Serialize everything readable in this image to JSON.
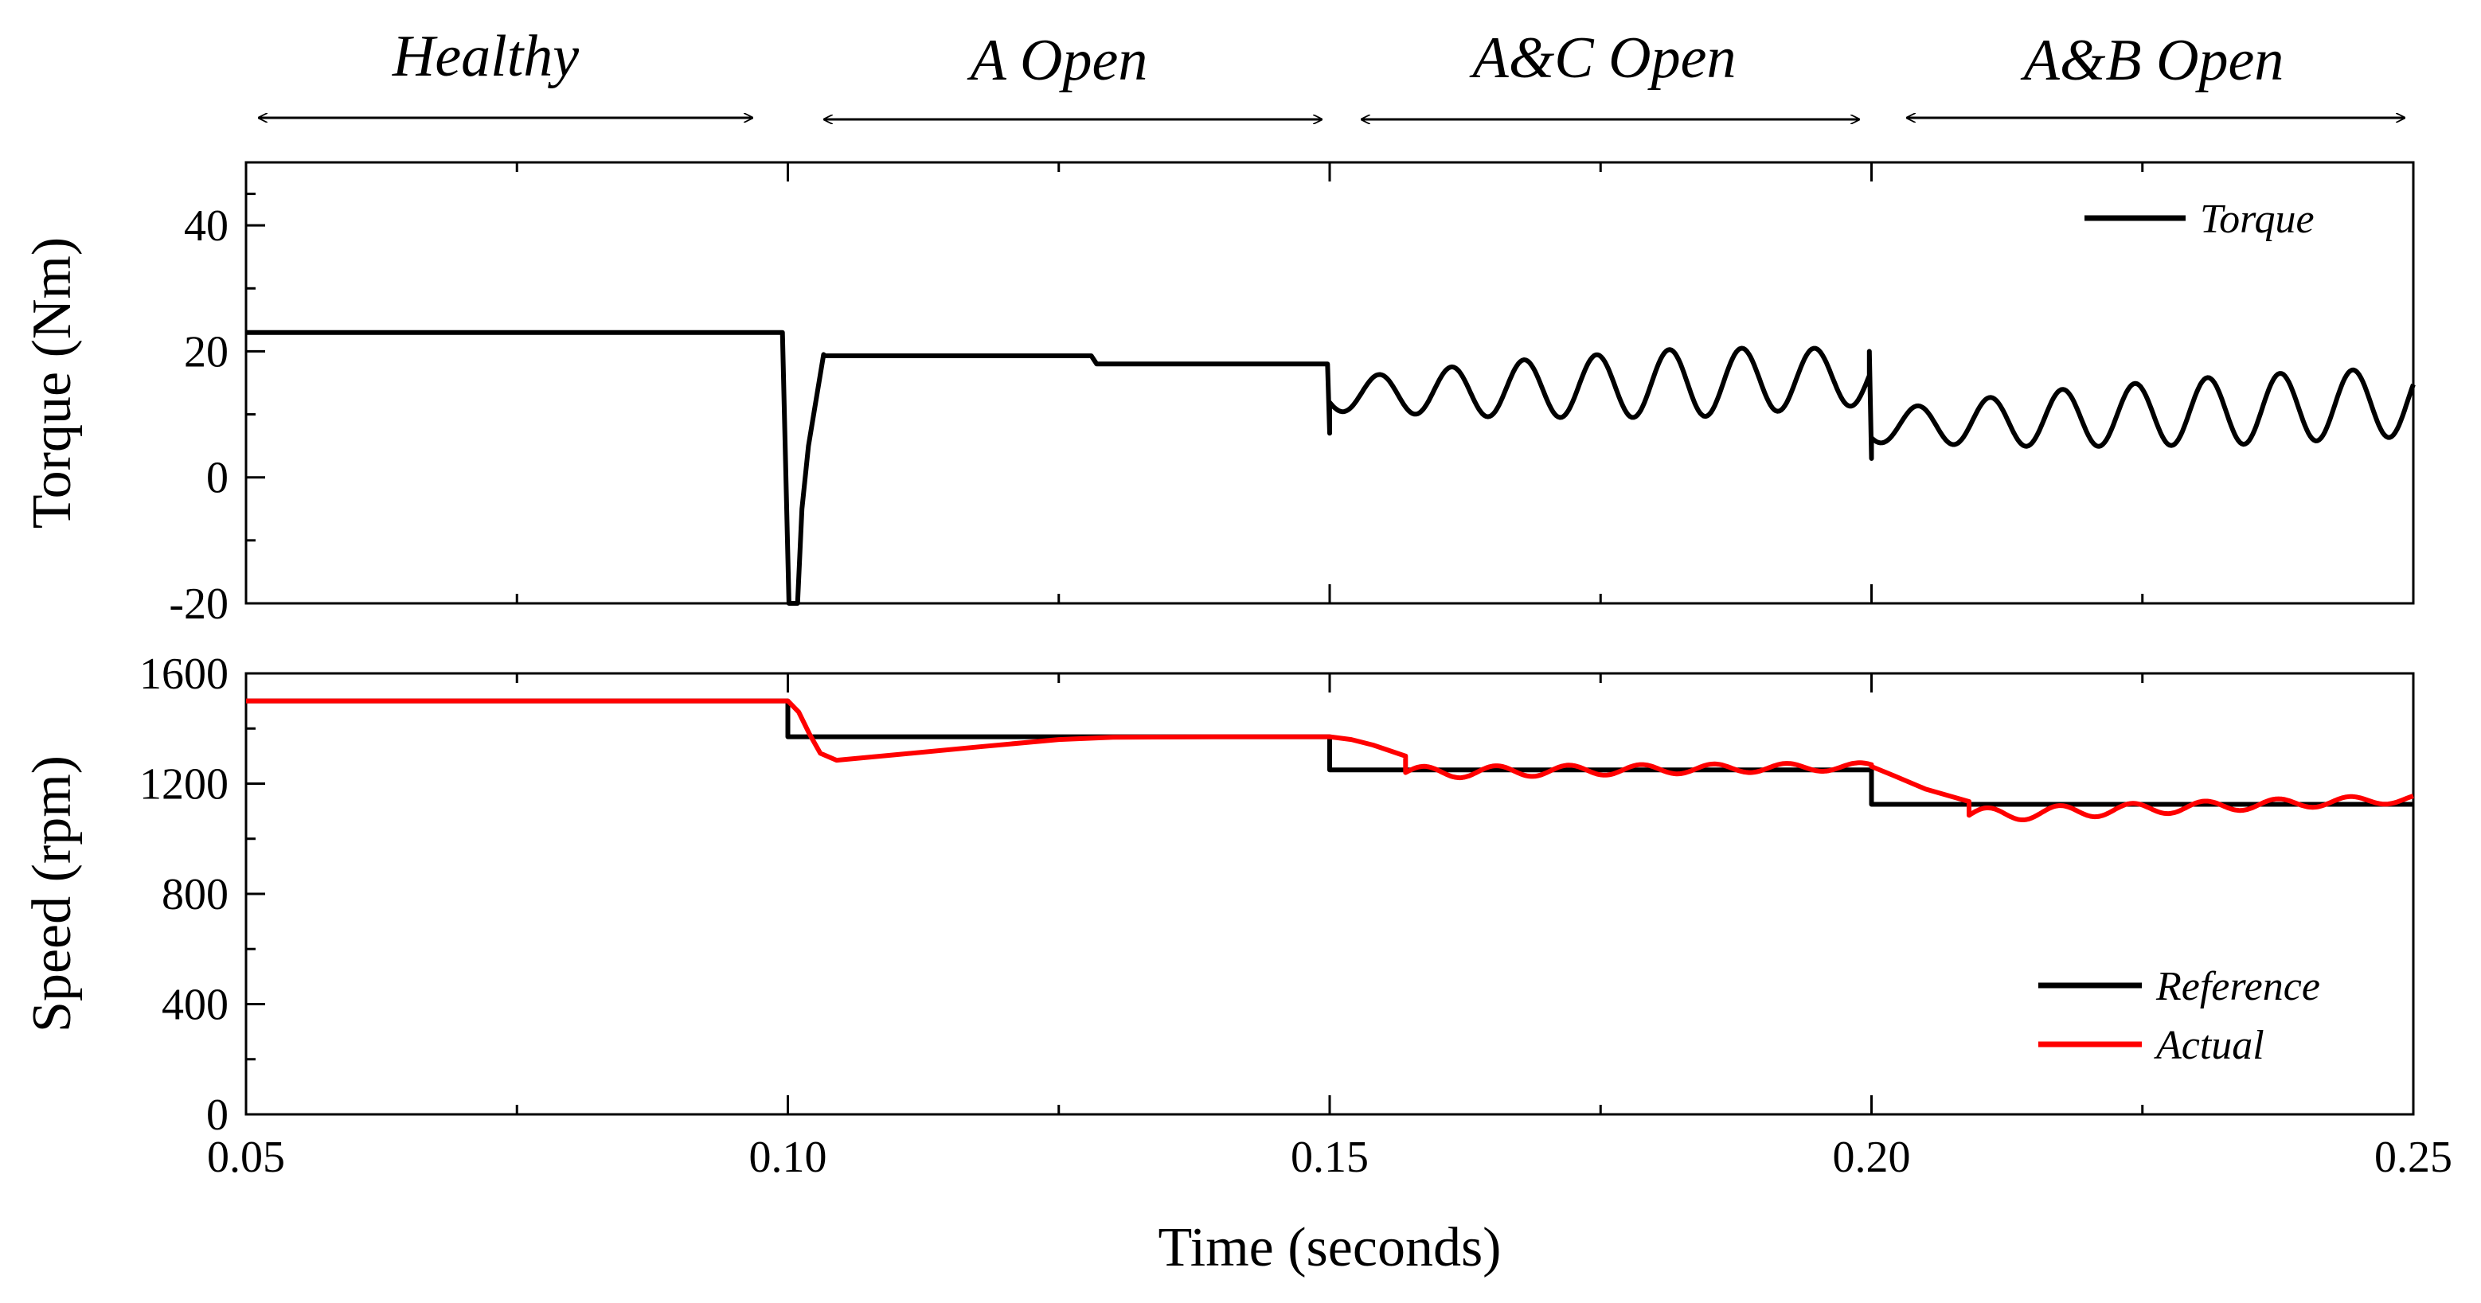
{
  "chart_data": [
    {
      "type": "line",
      "panel": "top",
      "ylabel": "Torque (Nm)",
      "xlim": [
        0.05,
        0.25
      ],
      "ylim": [
        -20,
        50
      ],
      "yticks": [
        -20,
        0,
        20,
        40
      ],
      "ytick_labels": [
        "-20",
        "0",
        "20",
        "40"
      ],
      "legend": {
        "position": "top-right",
        "entries": [
          "Torque"
        ]
      },
      "series": [
        {
          "name": "Torque",
          "color": "#000000",
          "segments": [
            {
              "kind": "const",
              "x0": 0.05,
              "x1": 0.0995,
              "y": 23
            },
            {
              "kind": "points",
              "x": [
                0.0995,
                0.1001,
                0.1009,
                0.1013,
                0.1019,
                0.1033
              ],
              "y": [
                23,
                -20,
                -20,
                -5,
                5,
                19.5
              ]
            },
            {
              "kind": "const",
              "x0": 0.1033,
              "x1": 0.128,
              "y": 19.3
            },
            {
              "kind": "points",
              "x": [
                0.128,
                0.1285
              ],
              "y": [
                19.3,
                18
              ]
            },
            {
              "kind": "const",
              "x0": 0.1285,
              "x1": 0.1498,
              "y": 18
            },
            {
              "kind": "points",
              "x": [
                0.1498,
                0.15
              ],
              "y": [
                18,
                7
              ]
            },
            {
              "kind": "osc",
              "x0": 0.15,
              "x1": 0.1998,
              "center": [
                13,
                16
              ],
              "amp": [
                2.5,
                4.5,
                5.5,
                4.5
              ],
              "period": 0.0067,
              "phase": 3.6
            },
            {
              "kind": "points",
              "x": [
                0.1998,
                0.2
              ],
              "y": [
                20,
                3
              ]
            },
            {
              "kind": "osc",
              "x0": 0.2,
              "x1": 0.25,
              "center": [
                8,
                12
              ],
              "amp": [
                2.5,
                4.5,
                5.5,
                5.5
              ],
              "period": 0.0067,
              "phase": 3.9
            }
          ]
        }
      ]
    },
    {
      "type": "line",
      "panel": "bottom",
      "xlabel": "Time (seconds)",
      "ylabel": "Speed (rpm)",
      "xlim": [
        0.05,
        0.25
      ],
      "ylim": [
        0,
        1600
      ],
      "xticks": [
        0.05,
        0.1,
        0.15,
        0.2,
        0.25
      ],
      "xtick_labels": [
        "0.05",
        "0.10",
        "0.15",
        "0.20",
        "0.25"
      ],
      "yticks": [
        0,
        400,
        800,
        1200,
        1600
      ],
      "ytick_labels": [
        "0",
        "400",
        "800",
        "1200",
        "1600"
      ],
      "legend": {
        "position": "bottom-right",
        "entries": [
          "Reference",
          "Actual"
        ]
      },
      "series": [
        {
          "name": "Reference",
          "color": "#000000",
          "x": [
            0.05,
            0.1,
            0.1,
            0.15,
            0.15,
            0.2,
            0.2,
            0.25
          ],
          "y": [
            1500,
            1500,
            1370,
            1370,
            1250,
            1250,
            1125,
            1125
          ]
        },
        {
          "name": "Actual",
          "color": "#ff0000",
          "segments": [
            {
              "kind": "points",
              "x": [
                0.05,
                0.1,
                0.101,
                0.102,
                0.103,
                0.1045
              ],
              "y": [
                1500,
                1500,
                1460,
                1380,
                1310,
                1285
              ]
            },
            {
              "kind": "points",
              "x": [
                0.1045,
                0.11,
                0.118,
                0.125,
                0.13,
                0.14,
                0.15,
                0.152,
                0.154,
                0.157
              ],
              "y": [
                1285,
                1305,
                1335,
                1360,
                1368,
                1370,
                1370,
                1360,
                1340,
                1300
              ]
            },
            {
              "kind": "osc",
              "x0": 0.157,
              "x1": 0.2,
              "center": [
                1240,
                1262
              ],
              "amp": [
                22,
                14
              ],
              "period": 0.0067,
              "phase": 0
            },
            {
              "kind": "points",
              "x": [
                0.2,
                0.202,
                0.205,
                0.209
              ],
              "y": [
                1262,
                1230,
                1180,
                1135
              ]
            },
            {
              "kind": "osc",
              "x0": 0.209,
              "x1": 0.25,
              "center": [
                1085,
                1145
              ],
              "amp": [
                25,
                15
              ],
              "period": 0.0067,
              "phase": 0
            }
          ]
        }
      ]
    }
  ],
  "phases": [
    {
      "label": "Healthy",
      "from": 0.05,
      "to": 0.1
    },
    {
      "label": "A Open",
      "from": 0.1,
      "to": 0.15
    },
    {
      "label": "A&C Open",
      "from": 0.15,
      "to": 0.2
    },
    {
      "label": "A&B Open",
      "from": 0.2,
      "to": 0.25
    }
  ]
}
